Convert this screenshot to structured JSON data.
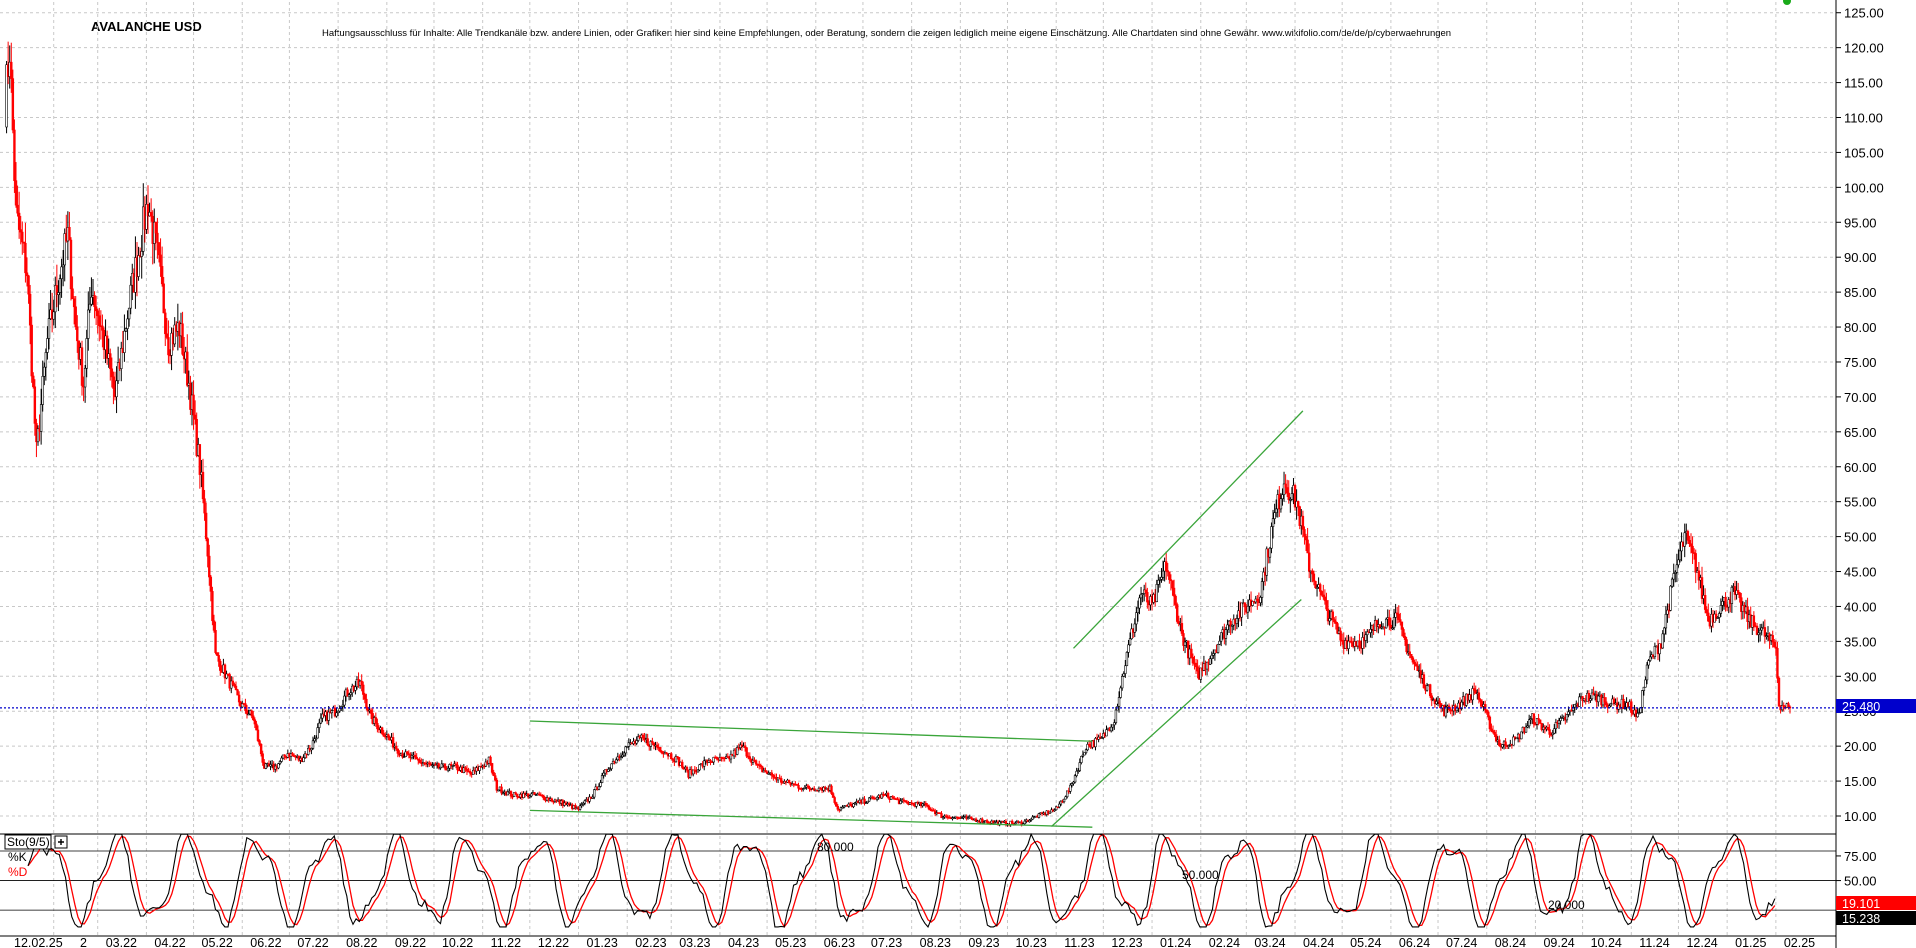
{
  "chart_data": {
    "type": "candlestick",
    "title": "AVALANCHE USD",
    "disclaimer": "Haftungsausschluss für Inhalte: Alle Trendkanäle bzw. andere Linien, oder Grafiken hier sind keine Empfehlungen, oder Beratung, sondern die zeigen lediglich meine eigene Einschätzung. Alle Chartdaten sind ohne Gewähr.  www.wikifolio.com/de/de/p/cyberwaehrungen",
    "y_ticks": [
      "125.00",
      "120.00",
      "115.00",
      "110.00",
      "105.00",
      "100.00",
      "95.00",
      "90.00",
      "85.00",
      "80.00",
      "75.00",
      "70.00",
      "65.00",
      "60.00",
      "55.00",
      "50.00",
      "45.00",
      "40.00",
      "35.00",
      "30.00",
      "25.00",
      "20.00",
      "15.00",
      "10.00"
    ],
    "ylim": [
      7.5,
      127
    ],
    "x_ticks": [
      "12.02.25",
      "2",
      "03.22",
      "04.22",
      "05.22",
      "06.22",
      "07.22",
      "08.22",
      "09.22",
      "10.22",
      "11.22",
      "12.22",
      "01.23",
      "02.23",
      "03.23",
      "04.23",
      "05.23",
      "06.23",
      "07.23",
      "08.23",
      "09.23",
      "10.23",
      "11.23",
      "12.23",
      "01.24",
      "02.24",
      "03.24",
      "04.24",
      "05.24",
      "06.24",
      "07.24",
      "08.24",
      "09.24",
      "10.24",
      "11.24",
      "12.24",
      "01.25",
      "02.25"
    ],
    "last_price": "25.480",
    "colors": {
      "up": "#000000",
      "down": "#ff0000",
      "trend": "#3aa53a",
      "price_line": "#0000cc"
    },
    "path_points": [
      [
        "2022-01-01",
        112
      ],
      [
        "2022-01-04",
        120
      ],
      [
        "2022-01-08",
        96
      ],
      [
        "2022-01-15",
        88
      ],
      [
        "2022-01-21",
        62
      ],
      [
        "2022-01-28",
        78
      ],
      [
        "2022-02-05",
        88
      ],
      [
        "2022-02-10",
        93
      ],
      [
        "2022-02-15",
        80
      ],
      [
        "2022-02-20",
        72
      ],
      [
        "2022-02-25",
        86
      ],
      [
        "2022-03-05",
        78
      ],
      [
        "2022-03-12",
        70
      ],
      [
        "2022-03-20",
        82
      ],
      [
        "2022-03-28",
        92
      ],
      [
        "2022-04-02",
        98
      ],
      [
        "2022-04-08",
        90
      ],
      [
        "2022-04-15",
        78
      ],
      [
        "2022-04-22",
        80
      ],
      [
        "2022-04-28",
        72
      ],
      [
        "2022-05-05",
        60
      ],
      [
        "2022-05-10",
        48
      ],
      [
        "2022-05-15",
        33
      ],
      [
        "2022-05-22",
        30
      ],
      [
        "2022-05-31",
        26
      ],
      [
        "2022-06-08",
        24
      ],
      [
        "2022-06-15",
        17
      ],
      [
        "2022-06-22",
        17
      ],
      [
        "2022-06-30",
        19
      ],
      [
        "2022-07-08",
        18
      ],
      [
        "2022-07-15",
        20
      ],
      [
        "2022-07-22",
        24
      ],
      [
        "2022-07-30",
        25
      ],
      [
        "2022-08-08",
        28
      ],
      [
        "2022-08-15",
        29
      ],
      [
        "2022-08-22",
        24
      ],
      [
        "2022-08-30",
        22
      ],
      [
        "2022-09-10",
        19
      ],
      [
        "2022-09-20",
        18
      ],
      [
        "2022-10-01",
        17
      ],
      [
        "2022-10-15",
        17
      ],
      [
        "2022-10-25",
        16
      ],
      [
        "2022-11-05",
        18
      ],
      [
        "2022-11-10",
        14
      ],
      [
        "2022-11-20",
        13
      ],
      [
        "2022-12-05",
        13
      ],
      [
        "2022-12-20",
        12
      ],
      [
        "2023-01-01",
        11
      ],
      [
        "2023-01-10",
        13
      ],
      [
        "2023-01-20",
        17
      ],
      [
        "2023-02-01",
        20
      ],
      [
        "2023-02-10",
        21
      ],
      [
        "2023-02-20",
        20
      ],
      [
        "2023-03-05",
        18
      ],
      [
        "2023-03-12",
        16
      ],
      [
        "2023-03-25",
        18
      ],
      [
        "2023-04-05",
        18
      ],
      [
        "2023-04-15",
        20
      ],
      [
        "2023-04-25",
        17
      ],
      [
        "2023-05-10",
        15
      ],
      [
        "2023-05-25",
        14
      ],
      [
        "2023-06-10",
        14
      ],
      [
        "2023-06-15",
        11
      ],
      [
        "2023-06-30",
        12
      ],
      [
        "2023-07-15",
        13
      ],
      [
        "2023-07-25",
        12
      ],
      [
        "2023-08-10",
        11.5
      ],
      [
        "2023-08-20",
        10
      ],
      [
        "2023-09-10",
        9.5
      ],
      [
        "2023-09-25",
        9
      ],
      [
        "2023-10-10",
        9
      ],
      [
        "2023-10-20",
        10
      ],
      [
        "2023-11-01",
        11
      ],
      [
        "2023-11-10",
        14
      ],
      [
        "2023-11-20",
        20
      ],
      [
        "2023-11-30",
        21
      ],
      [
        "2023-12-08",
        24
      ],
      [
        "2023-12-15",
        32
      ],
      [
        "2023-12-25",
        42
      ],
      [
        "2024-01-01",
        40
      ],
      [
        "2024-01-10",
        46
      ],
      [
        "2024-01-20",
        36
      ],
      [
        "2024-01-30",
        30
      ],
      [
        "2024-02-10",
        34
      ],
      [
        "2024-02-20",
        38
      ],
      [
        "2024-03-01",
        40
      ],
      [
        "2024-03-10",
        42
      ],
      [
        "2024-03-18",
        52
      ],
      [
        "2024-03-25",
        58
      ],
      [
        "2024-04-02",
        55
      ],
      [
        "2024-04-10",
        46
      ],
      [
        "2024-04-20",
        40
      ],
      [
        "2024-05-01",
        35
      ],
      [
        "2024-05-15",
        35
      ],
      [
        "2024-05-25",
        38
      ],
      [
        "2024-06-05",
        38
      ],
      [
        "2024-06-15",
        32
      ],
      [
        "2024-06-25",
        28
      ],
      [
        "2024-07-05",
        25
      ],
      [
        "2024-07-15",
        26
      ],
      [
        "2024-07-25",
        28
      ],
      [
        "2024-08-05",
        22
      ],
      [
        "2024-08-10",
        20
      ],
      [
        "2024-08-20",
        21
      ],
      [
        "2024-08-30",
        24
      ],
      [
        "2024-09-10",
        22
      ],
      [
        "2024-09-20",
        24
      ],
      [
        "2024-10-01",
        27
      ],
      [
        "2024-10-10",
        27
      ],
      [
        "2024-10-20",
        26
      ],
      [
        "2024-10-30",
        26
      ],
      [
        "2024-11-05",
        24
      ],
      [
        "2024-11-12",
        32
      ],
      [
        "2024-11-20",
        35
      ],
      [
        "2024-11-28",
        44
      ],
      [
        "2024-12-05",
        50
      ],
      [
        "2024-12-12",
        46
      ],
      [
        "2024-12-20",
        38
      ],
      [
        "2024-12-28",
        40
      ],
      [
        "2025-01-05",
        42
      ],
      [
        "2025-01-15",
        38
      ],
      [
        "2025-01-25",
        36
      ],
      [
        "2025-02-01",
        34
      ],
      [
        "2025-02-03",
        26
      ],
      [
        "2025-02-10",
        25.48
      ]
    ],
    "trendlines": [
      {
        "from": [
          "2022-12-01",
          23.6
        ],
        "to": [
          "2023-11-24",
          20.7
        ]
      },
      {
        "from": [
          "2022-12-01",
          10.8
        ],
        "to": [
          "2023-11-24",
          8.4
        ]
      },
      {
        "from": [
          "2023-10-29",
          8.5
        ],
        "to": [
          "2024-04-05",
          41
        ]
      },
      {
        "from": [
          "2023-11-12",
          34
        ],
        "to": [
          "2024-04-06",
          68
        ]
      }
    ],
    "oscillator": {
      "name": "Sto(9/5)",
      "series": [
        {
          "name": "%K",
          "color": "#000000"
        },
        {
          "name": "%D",
          "color": "#ff0000"
        }
      ],
      "levels": [
        {
          "label": "80.000"
        },
        {
          "label": "50.000"
        },
        {
          "label": "20.000"
        }
      ],
      "y_ticks": [
        "75.00",
        "50.00",
        "25.00"
      ],
      "k_last": "19.101",
      "d_last": "15.238"
    }
  }
}
